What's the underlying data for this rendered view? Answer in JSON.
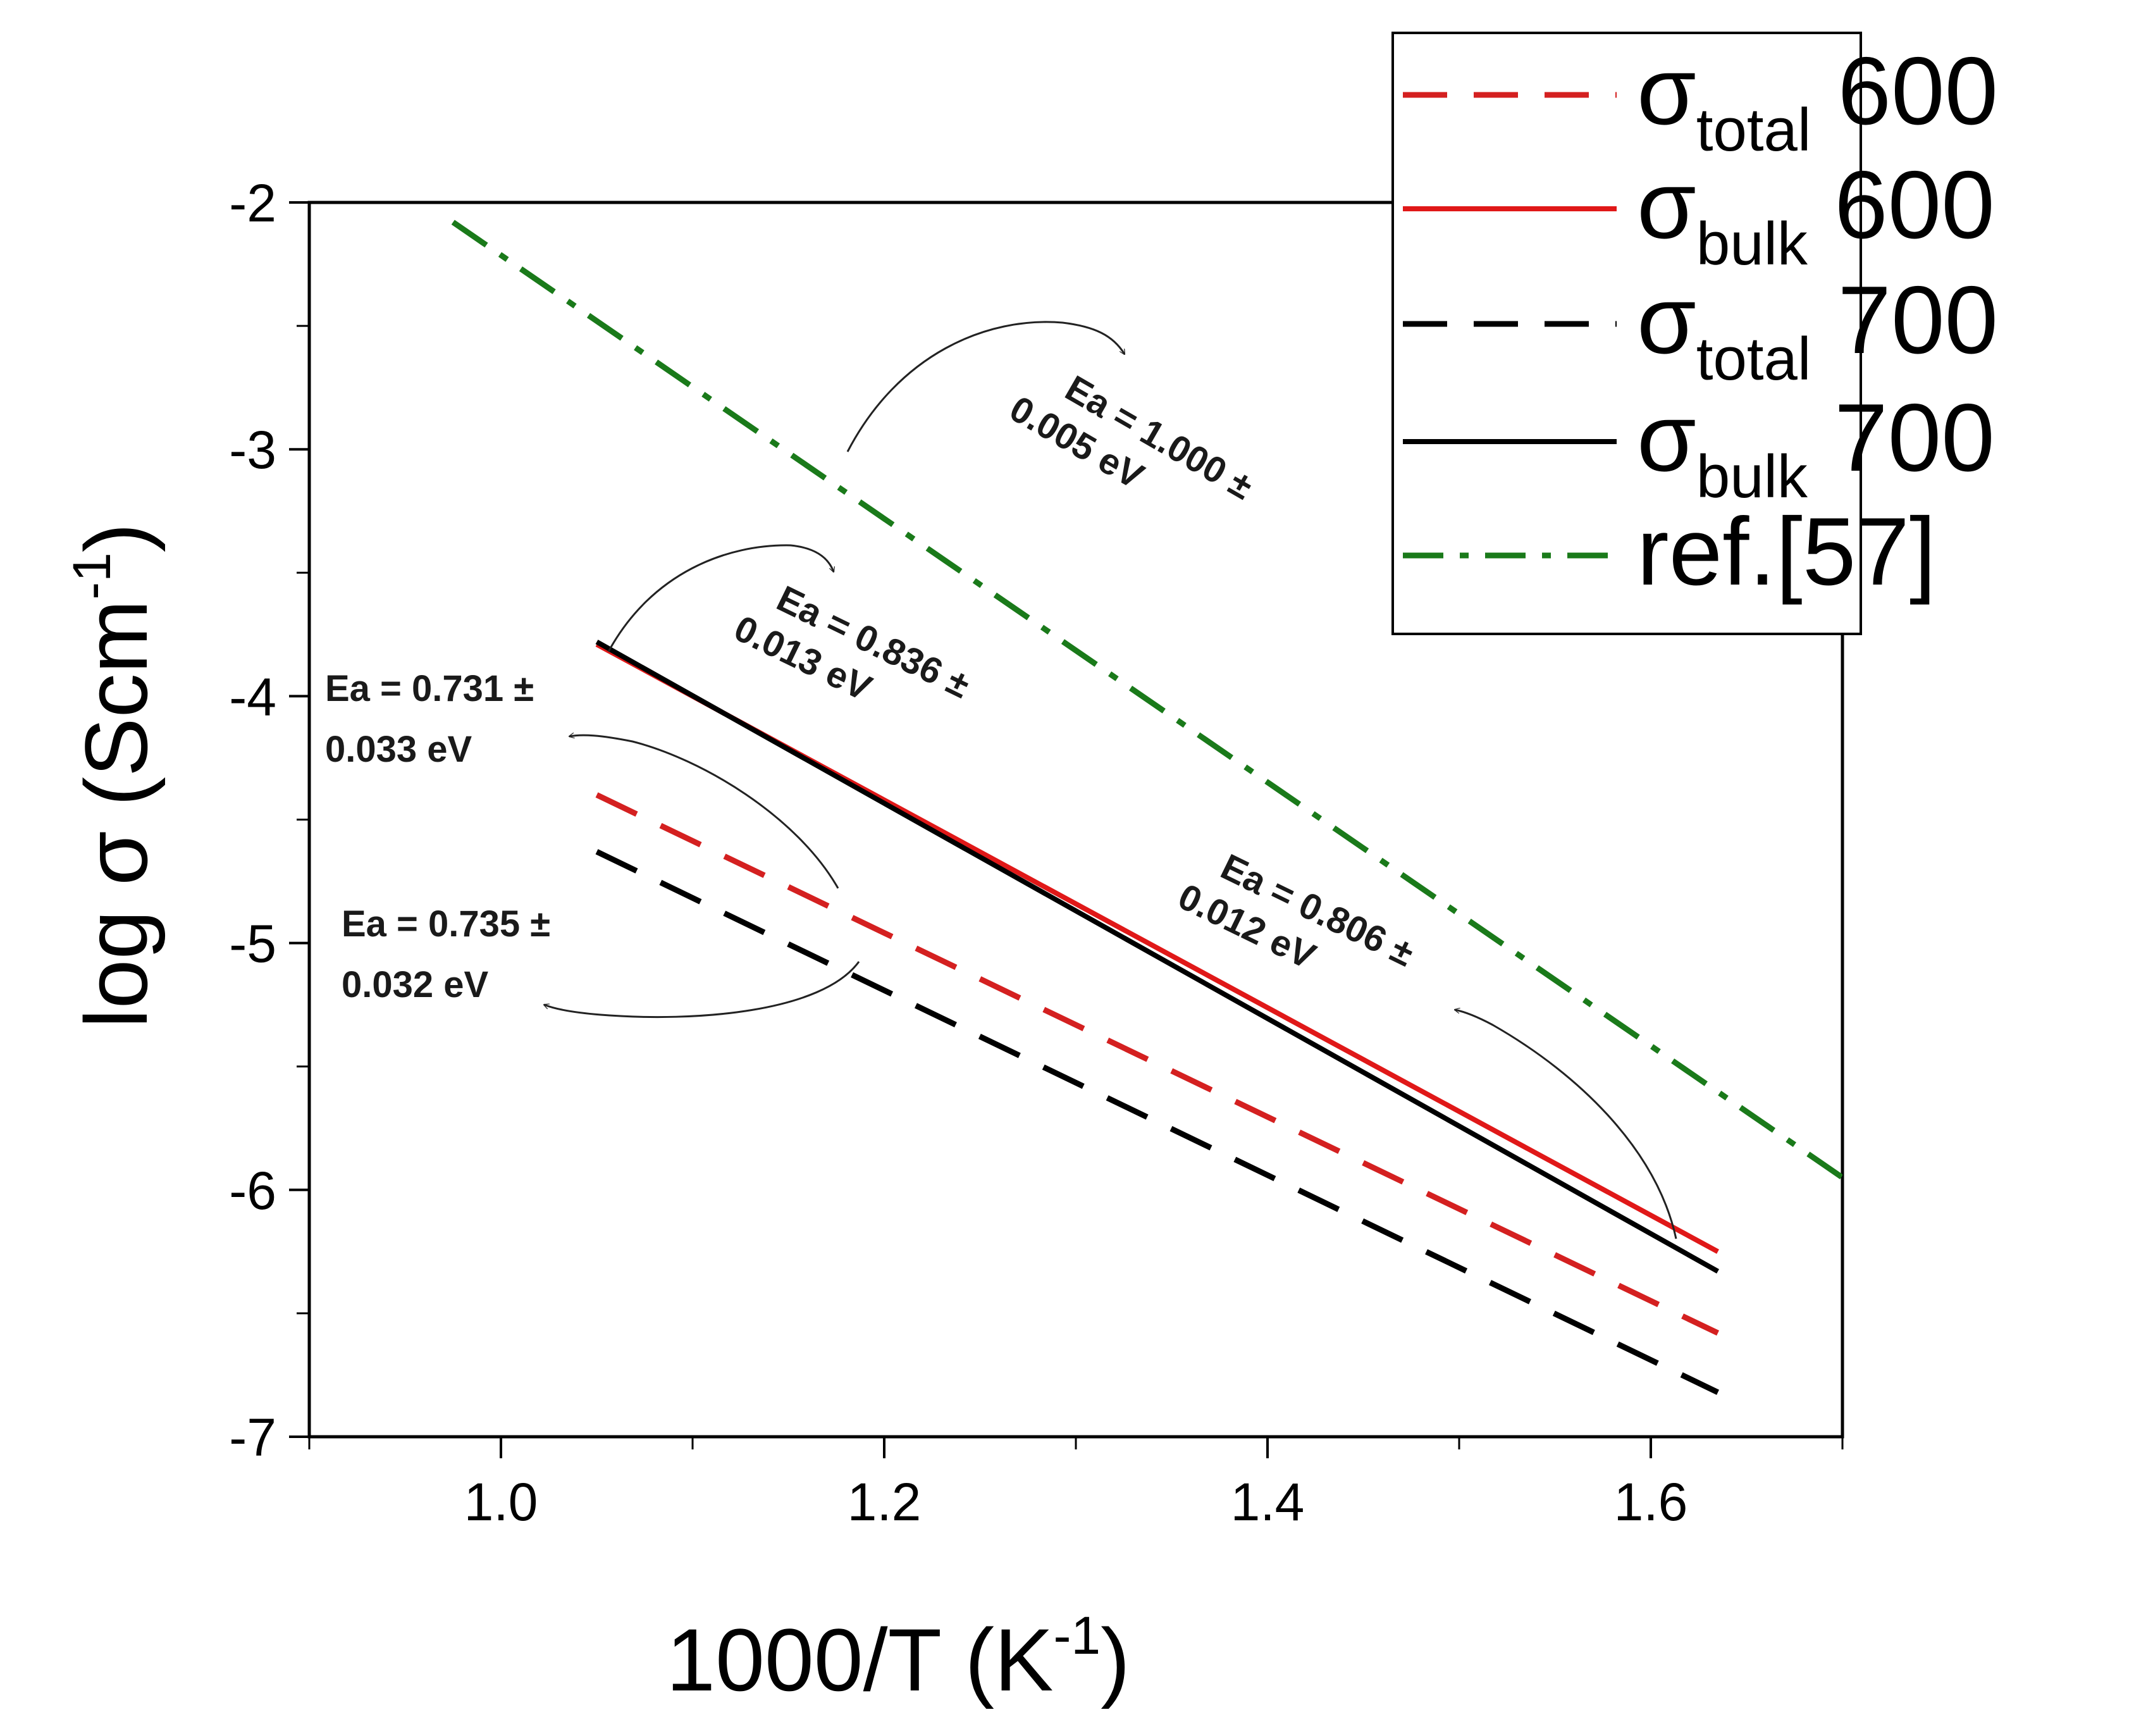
{
  "chart_data": {
    "type": "line",
    "xlabel": "1000/T (K",
    "xlabel_sup": "-1",
    "xlabel_close": ")",
    "ylabel": "log σ (Scm",
    "ylabel_sup": "-1",
    "ylabel_close": ")",
    "xlim": [
      0.9,
      1.7
    ],
    "ylim": [
      -7,
      -2
    ],
    "x_ticks": [
      1.0,
      1.2,
      1.4,
      1.6
    ],
    "x_tick_labels": [
      "1.0",
      "1.2",
      "1.4",
      "1.6"
    ],
    "y_ticks": [
      -2,
      -3,
      -4,
      -5,
      -6,
      -7
    ],
    "y_tick_labels": [
      "-2",
      "-3",
      "-4",
      "-5",
      "-6",
      "-7"
    ],
    "legend_position": "top-right",
    "series": [
      {
        "name": "σtotal 600",
        "symbol": "σ",
        "sub": "total",
        "suffix": " 600",
        "color": "#d42020",
        "style": "dashed",
        "x": [
          1.05,
          1.635
        ],
        "y": [
          -4.4,
          -6.58
        ]
      },
      {
        "name": "σbulk 600",
        "symbol": "σ",
        "sub": "bulk",
        "suffix": " 600",
        "color": "#e01818",
        "style": "solid",
        "x": [
          1.05,
          1.635
        ],
        "y": [
          -3.79,
          -6.25
        ]
      },
      {
        "name": "σtotal 700",
        "symbol": "σ",
        "sub": "total",
        "suffix": " 700",
        "color": "#000000",
        "style": "dashed",
        "x": [
          1.05,
          1.635
        ],
        "y": [
          -4.63,
          -6.82
        ]
      },
      {
        "name": "σbulk 700",
        "symbol": "σ",
        "sub": "bulk",
        "suffix": " 700",
        "color": "#000000",
        "style": "solid",
        "x": [
          1.05,
          1.635
        ],
        "y": [
          -3.78,
          -6.33
        ]
      },
      {
        "name": "ref.[57]",
        "symbol": "",
        "sub": "",
        "suffix": "ref.[57]",
        "color": "#1a7a1a",
        "style": "dashdot",
        "x": [
          0.975,
          1.7
        ],
        "y": [
          -2.08,
          -5.95
        ]
      }
    ],
    "annotations": [
      {
        "line1": "Ea = 1.000 ±",
        "line2": "0.005 eV"
      },
      {
        "line1": "Ea = 0.836 ±",
        "line2": "0.013 eV"
      },
      {
        "line1": "Ea = 0.731 ±",
        "line2": "0.033 eV"
      },
      {
        "line1": "Ea = 0.735 ±",
        "line2": "0.032 eV"
      },
      {
        "line1": "Ea = 0.806 ±",
        "line2": "0.012 eV"
      }
    ]
  }
}
